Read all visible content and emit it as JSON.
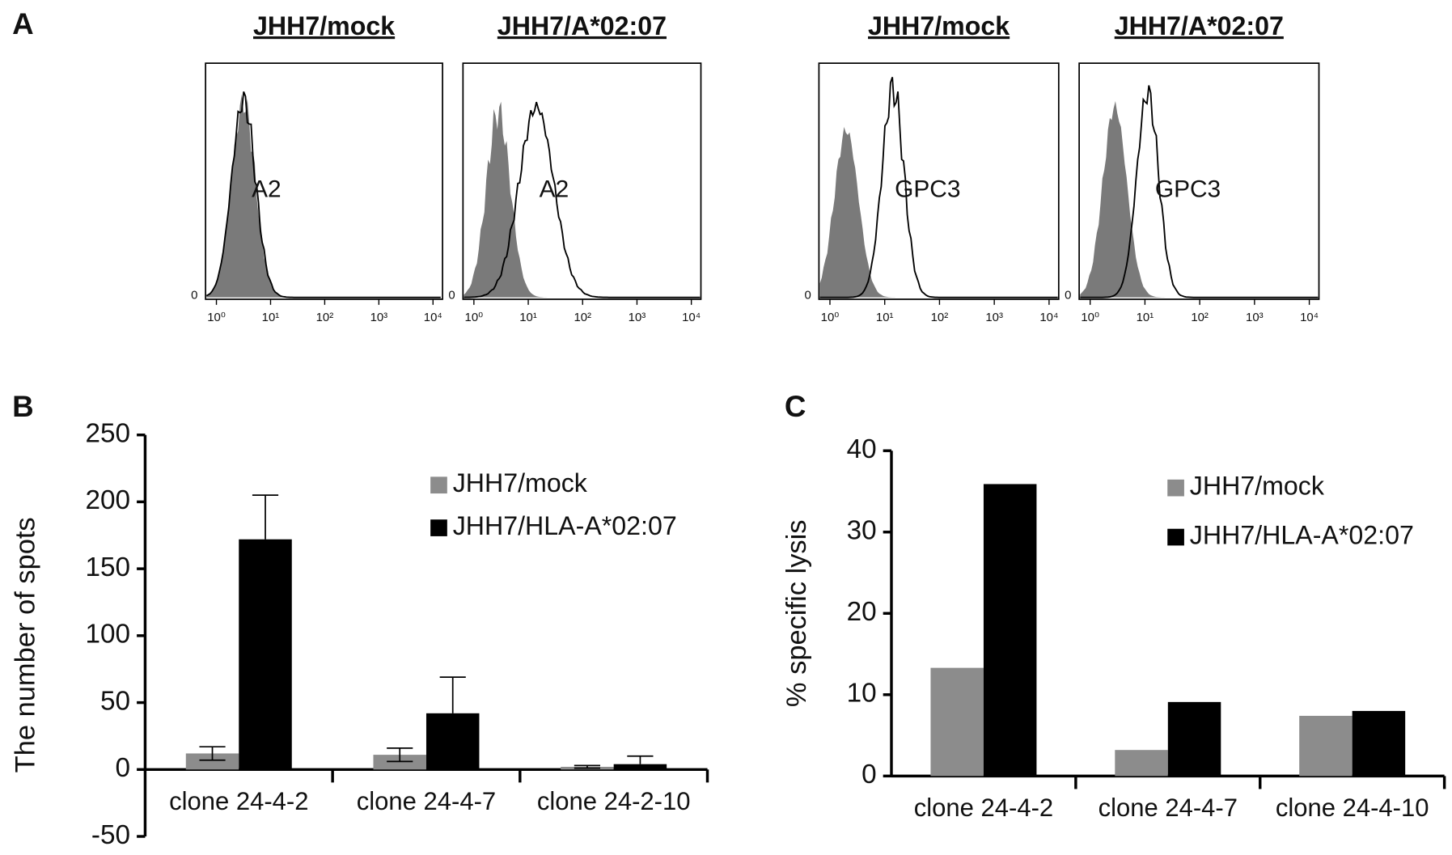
{
  "panel_labels": [
    "A",
    "B",
    "C"
  ],
  "chart_data": [
    {
      "type": "flow-histogram",
      "title": "JHH7/mock",
      "label": "A2",
      "log": true,
      "xlim": [
        0.63,
        15000
      ],
      "xticks": [
        {
          "value": 1,
          "label": "10⁰"
        },
        {
          "value": 10,
          "label": "10¹"
        },
        {
          "value": 100,
          "label": "10²"
        },
        {
          "value": 1000,
          "label": "10³"
        },
        {
          "value": 10000,
          "label": "10⁴"
        }
      ],
      "yticks": [
        0
      ]
    },
    {
      "type": "flow-histogram",
      "title": "JHH7/A*02:07",
      "label": "A2",
      "log": true,
      "xlim": [
        0.63,
        15000
      ],
      "xticks": [
        {
          "value": 1,
          "label": "10⁰"
        },
        {
          "value": 10,
          "label": "10¹"
        },
        {
          "value": 100,
          "label": "10²"
        },
        {
          "value": 1000,
          "label": "10³"
        },
        {
          "value": 10000,
          "label": "10⁴"
        }
      ],
      "yticks": [
        0
      ]
    },
    {
      "type": "flow-histogram",
      "title": "JHH7/mock",
      "label": "GPC3",
      "log": true,
      "xlim": [
        0.63,
        15000
      ],
      "xticks": [
        {
          "value": 1,
          "label": "10⁰"
        },
        {
          "value": 10,
          "label": "10¹"
        },
        {
          "value": 100,
          "label": "10²"
        },
        {
          "value": 1000,
          "label": "10³"
        },
        {
          "value": 10000,
          "label": "10⁴"
        }
      ],
      "yticks": [
        0
      ]
    },
    {
      "type": "flow-histogram",
      "title": "JHH7/A*02:07",
      "label": "GPC3",
      "log": true,
      "xlim": [
        0.63,
        15000
      ],
      "xticks": [
        {
          "value": 1,
          "label": "10⁰"
        },
        {
          "value": 10,
          "label": "10¹"
        },
        {
          "value": 100,
          "label": "10²"
        },
        {
          "value": 1000,
          "label": "10³"
        },
        {
          "value": 10000,
          "label": "10⁴"
        }
      ],
      "yticks": [
        0
      ]
    },
    {
      "type": "bar",
      "ylabel": "The number of spots",
      "categories": [
        "clone 24-4-2",
        "clone 24-4-7",
        "clone 24-2-10"
      ],
      "series": [
        {
          "name": "JHH7/mock",
          "color": "#8c8c8c",
          "values": [
            12,
            11,
            2
          ],
          "errors": [
            5,
            5,
            1
          ],
          "error_direction": "both"
        },
        {
          "name": "JHH7/HLA-A*02:07",
          "color": "#000000",
          "values": [
            172,
            42,
            4
          ],
          "errors": [
            33,
            27,
            6
          ],
          "error_direction": "up"
        }
      ],
      "ylim": [
        -50,
        250
      ],
      "yticks": [
        -50,
        0,
        50,
        100,
        150,
        200,
        250
      ],
      "legend": "upper right"
    },
    {
      "type": "bar",
      "ylabel": "% specific lysis",
      "categories": [
        "clone 24-4-2",
        "clone 24-4-7",
        "clone 24-4-10"
      ],
      "series": [
        {
          "name": "JHH7/mock",
          "color": "#8c8c8c",
          "values": [
            13.3,
            3.2,
            7.4
          ]
        },
        {
          "name": "JHH7/HLA-A*02:07",
          "color": "#000000",
          "values": [
            35.9,
            9.1,
            8.0
          ]
        }
      ],
      "ylim": [
        0,
        40
      ],
      "yticks": [
        0,
        10,
        20,
        30,
        40
      ],
      "legend": "upper right"
    }
  ]
}
